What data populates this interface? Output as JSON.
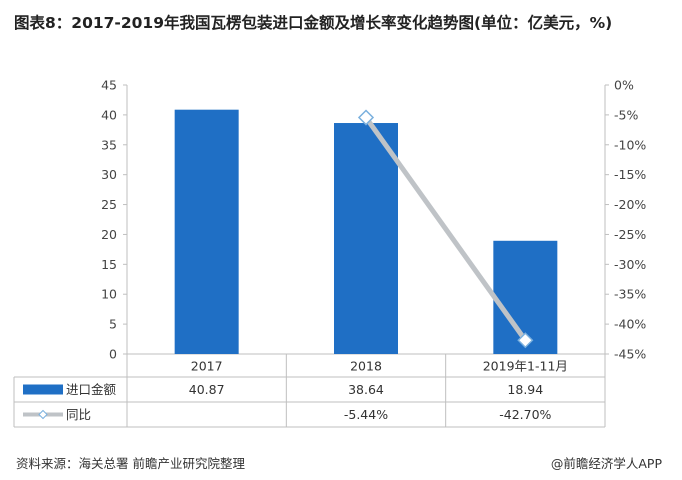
{
  "title": "图表8：2017-2019年我国瓦楞包装进口金额及增长率变化趋势图(单位：亿美元，%)",
  "source": "资料来源：海关总署 前瞻产业研究院整理",
  "brand": "@前瞻经济学人APP",
  "chart_data": {
    "type": "bar",
    "categories": [
      "2017",
      "2018",
      "2019年1-11月"
    ],
    "series": [
      {
        "name": "进口金额",
        "type": "bar",
        "axis": "left",
        "color": "#1f6fc5",
        "values": [
          40.87,
          38.64,
          18.94
        ],
        "labels": [
          "40.87",
          "38.64",
          "18.94"
        ]
      },
      {
        "name": "同比",
        "type": "line",
        "axis": "right",
        "color": "#bfc3c7",
        "values": [
          null,
          -5.44,
          -42.7
        ],
        "labels": [
          "",
          "-5.44%",
          "-42.70%"
        ]
      }
    ],
    "y_left": {
      "min": 0,
      "max": 45,
      "ticks": [
        "0",
        "5",
        "10",
        "15",
        "20",
        "25",
        "30",
        "35",
        "40",
        "45"
      ]
    },
    "y_right": {
      "min": -45,
      "max": 0,
      "ticks": [
        "0%",
        "-5%",
        "-10%",
        "-15%",
        "-20%",
        "-25%",
        "-30%",
        "-35%",
        "-40%",
        "-45%"
      ]
    },
    "grid": false,
    "legend": "data-table"
  }
}
